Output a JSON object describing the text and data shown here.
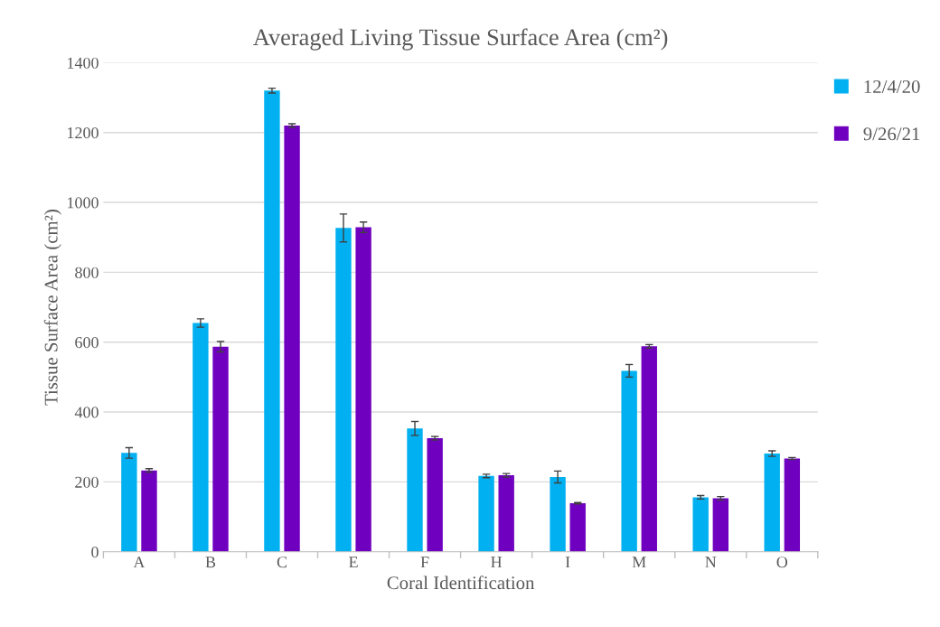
{
  "chart_data": {
    "type": "bar",
    "title": "Averaged Living Tissue Surface Area (cm²)",
    "xlabel": "Coral Identification",
    "ylabel": "Tissue Surface Area (cm²)",
    "categories": [
      "A",
      "B",
      "C",
      "E",
      "F",
      "H",
      "I",
      "M",
      "N",
      "O"
    ],
    "series": [
      {
        "name": "12/4/20",
        "color": "#00b0f0",
        "values": [
          283,
          655,
          1320,
          927,
          353,
          217,
          214,
          518,
          156,
          281
        ],
        "errors": [
          15,
          12,
          7,
          40,
          20,
          5,
          17,
          18,
          5,
          8
        ]
      },
      {
        "name": "9/26/21",
        "color": "#7000c0",
        "values": [
          233,
          587,
          1220,
          929,
          325,
          219,
          139,
          588,
          153,
          267
        ],
        "errors": [
          5,
          15,
          5,
          15,
          5,
          5,
          2,
          5,
          5,
          3
        ]
      }
    ],
    "ylim": [
      0,
      1400
    ],
    "yticks": [
      0,
      200,
      400,
      600,
      800,
      1000,
      1200,
      1400
    ],
    "grid": "y",
    "legend": "top right"
  }
}
